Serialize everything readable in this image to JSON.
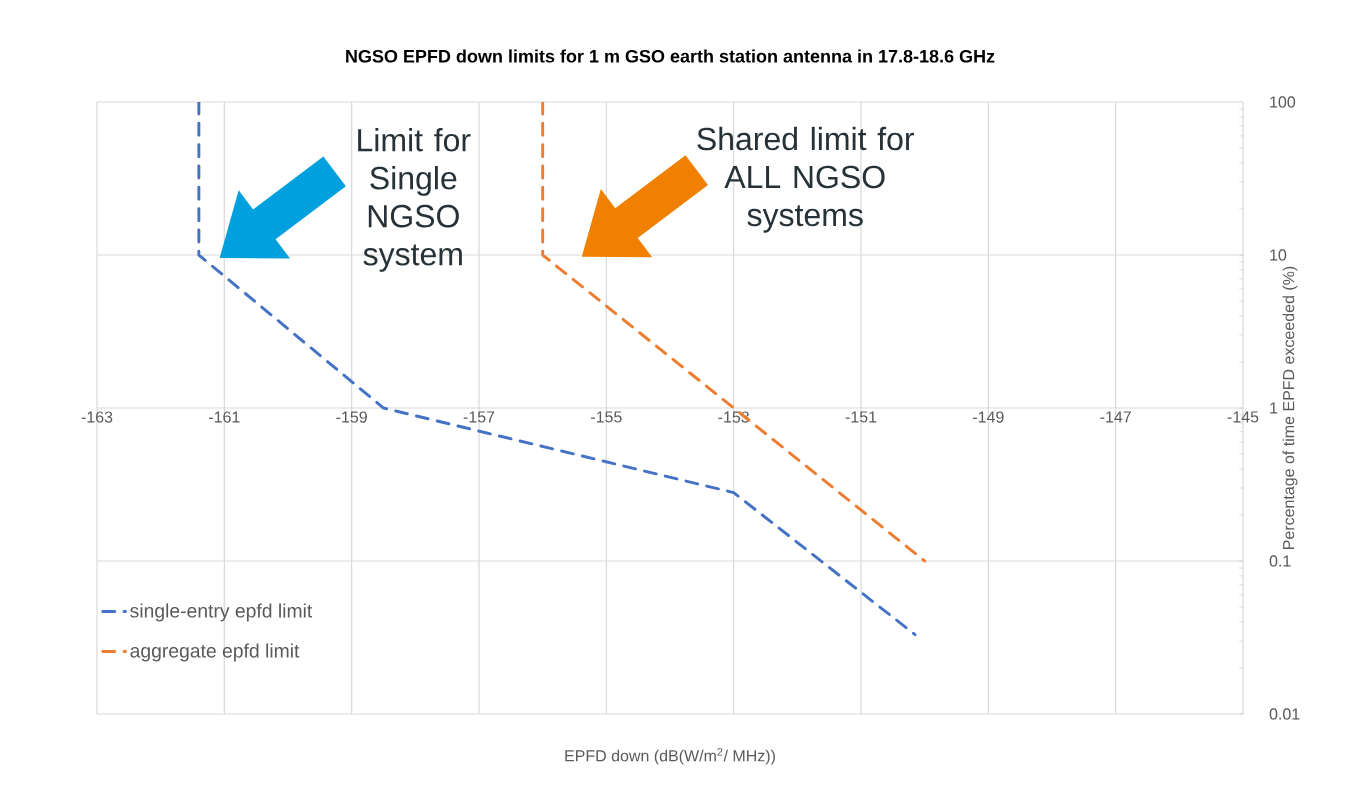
{
  "chart_data": {
    "type": "line",
    "title": "NGSO EPFD down limits for 1 m GSO earth station antenna in 17.8-18.6 GHz",
    "xlabel": "EPFD down (dB(W/m$^{2}$/ MHz))",
    "ylabel": "Percentage of time EPFD exceeded  (%)",
    "series": [
      {
        "name": "single-entry epfd limit",
        "color": "#4472c4",
        "x": [
          -161.4,
          -161.4,
          -158.5,
          -153,
          -150.15
        ],
        "values": [
          100,
          10,
          1,
          0.28,
          0.033
        ]
      },
      {
        "name": "aggregate epfd limit",
        "color": "#ed7d31",
        "x": [
          -156,
          -156,
          -153,
          -150
        ],
        "values": [
          100,
          10,
          1,
          0.1
        ]
      }
    ],
    "xlim": [
      -163,
      -145
    ],
    "xticks": [
      -163,
      -161,
      -159,
      -157,
      -155,
      -153,
      -151,
      -149,
      -147,
      -145
    ],
    "ylim": [
      0.01,
      100
    ],
    "yticks": [
      0.01,
      0.1,
      1,
      10,
      100
    ],
    "log": "y",
    "grid": true,
    "legend": "bottom left",
    "line_style": "dashed",
    "marker": "none",
    "annotations": [
      "Limit for Single NGSO system",
      "Shared limit for ALL NGSO systems"
    ]
  }
}
